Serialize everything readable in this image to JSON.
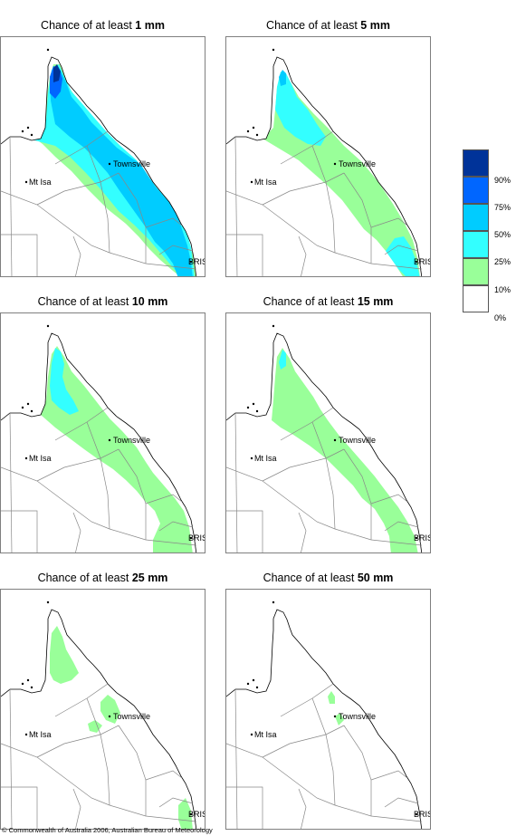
{
  "panels": [
    {
      "title_prefix": "Chance of at least ",
      "title_value": "1 mm",
      "level": 0
    },
    {
      "title_prefix": "Chance of at least ",
      "title_value": "5 mm",
      "level": 1
    },
    {
      "title_prefix": "Chance of at least ",
      "title_value": "10 mm",
      "level": 2
    },
    {
      "title_prefix": "Chance of at least ",
      "title_value": "15 mm",
      "level": 3
    },
    {
      "title_prefix": "Chance of at least ",
      "title_value": "25 mm",
      "level": 4
    },
    {
      "title_prefix": "Chance of at least ",
      "title_value": "50 mm",
      "level": 5
    }
  ],
  "places": {
    "townsville": "Townsville",
    "mt_isa": "Mt Isa",
    "bris": "BRIS"
  },
  "legend": {
    "ticks": [
      "90%",
      "75%",
      "50%",
      "25%",
      "10%",
      "0%"
    ],
    "colors": [
      "#003399",
      "#0066ff",
      "#00ccff",
      "#33ffff",
      "#99ff99",
      "#ffffff"
    ]
  },
  "footer": {
    "copyright": "© Commonwealth of Australia 2006, Australian Bureau of Meteorology"
  }
}
